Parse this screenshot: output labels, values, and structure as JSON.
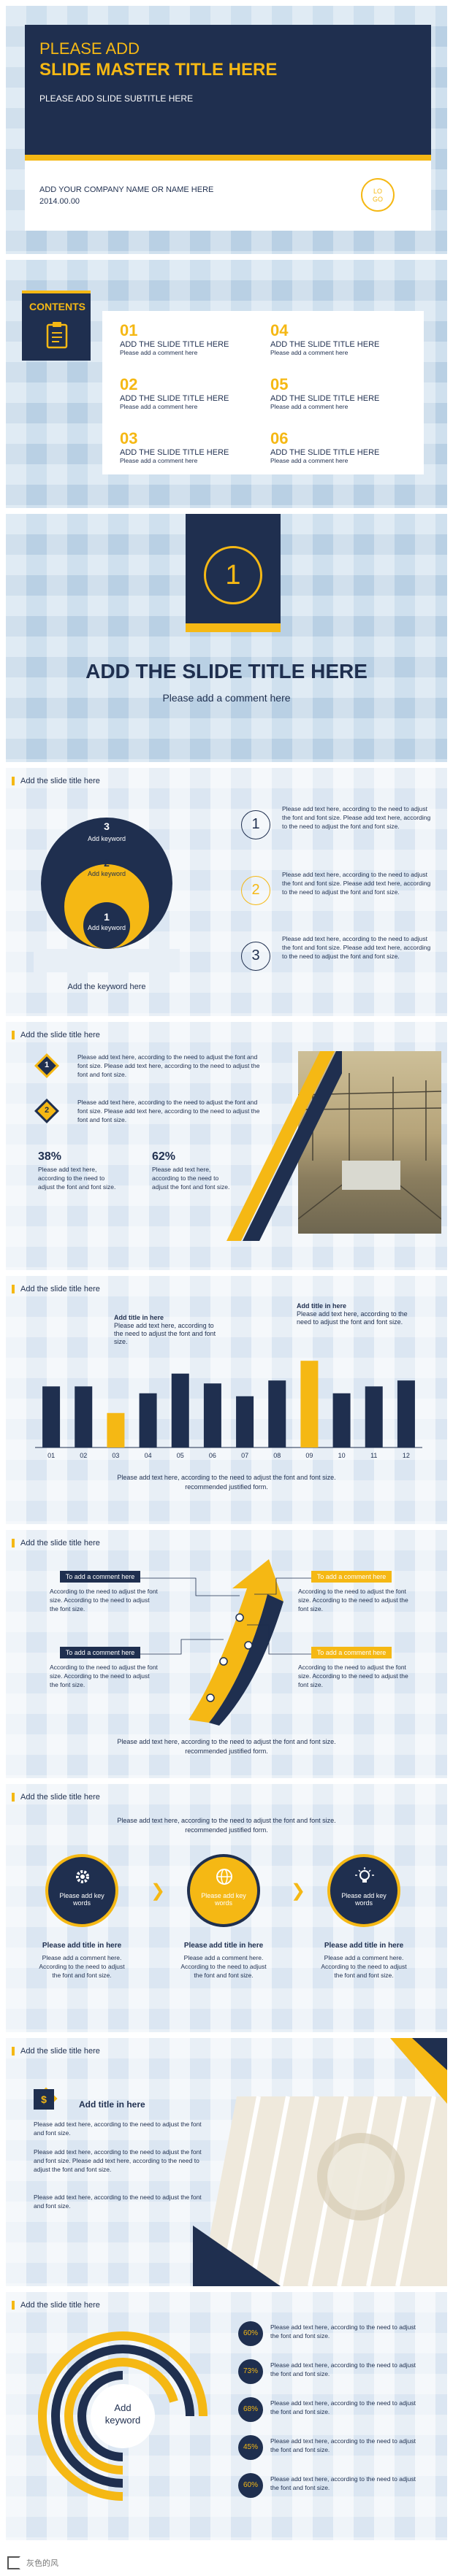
{
  "slide1": {
    "title_line1": "PLEASE ADD",
    "title_line2": "SLIDE MASTER TITLE HERE",
    "subtitle": "PLEASE ADD SLIDE SUBTITLE HERE",
    "company": "ADD YOUR COMPANY NAME OR NAME HERE",
    "date": "2014.00.00",
    "logo_line1": "LO",
    "logo_line2": "GO"
  },
  "slide2": {
    "contents_label": "CONTENTS",
    "items": [
      {
        "num": "01",
        "title": "ADD THE SLIDE TITLE HERE",
        "sub": "Please add a comment here"
      },
      {
        "num": "02",
        "title": "ADD THE SLIDE TITLE HERE",
        "sub": "Please add a comment here"
      },
      {
        "num": "03",
        "title": "ADD THE SLIDE TITLE HERE",
        "sub": "Please add a comment here"
      },
      {
        "num": "04",
        "title": "ADD THE SLIDE TITLE HERE",
        "sub": "Please add a comment here"
      },
      {
        "num": "05",
        "title": "ADD THE SLIDE TITLE HERE",
        "sub": "Please add a comment here"
      },
      {
        "num": "06",
        "title": "ADD THE SLIDE TITLE HERE",
        "sub": "Please add a comment here"
      }
    ]
  },
  "slide3": {
    "number": "1",
    "title": "ADD THE SLIDE TITLE HERE",
    "comment": "Please add a comment here"
  },
  "slide4": {
    "header": "Add the slide title here",
    "level3": "3",
    "level2": "2",
    "level1": "1",
    "keyword": "Add keyword",
    "bottom": "Add the keyword here",
    "points": [
      {
        "num": "1",
        "text": "Please add text here, according to the need to adjust the font and font size. Please add text here, according to the need to adjust the font and font size."
      },
      {
        "num": "2",
        "text": "Please add text here, according to the need to adjust the font and font size. Please add text here, according to the need to adjust the font and font size."
      },
      {
        "num": "3",
        "text": "Please add text here, according to the need to adjust the font and font size. Please add text here, according to the need to adjust the font and font size."
      }
    ]
  },
  "slide5": {
    "header": "Add the slide title here",
    "p1num": "1",
    "p1text": "Please add text here, according to the need to adjust the font and font size. Please add text here, according to the need to adjust the font and font size.",
    "p2num": "2",
    "p2text": "Please add text here, according to the need to adjust the font and font size. Please add text here, according to the need to adjust the font and font size.",
    "stat1": "38%",
    "stat1text": "Please add text here, according to the need to adjust the font and font size.",
    "stat2": "62%",
    "stat2text": "Please add text here, according to the need to adjust the font and font size."
  },
  "slide6": {
    "header": "Add the slide title here",
    "note1_title": "Add title in here",
    "note1_text": "Please add text here, according to the need to adjust the font and font size.",
    "note2_title": "Add title in here",
    "note2_text": "Please add text here, according to the need to adjust the font and font size.",
    "footer": "Please add text here, according to the need to adjust the font and font size. recommended justified form.",
    "colors": {
      "navy": "#1f2f4f",
      "yellow": "#f5b814"
    }
  },
  "chart_data": {
    "type": "bar",
    "categories": [
      "01",
      "02",
      "03",
      "04",
      "05",
      "06",
      "07",
      "08",
      "09",
      "10",
      "11",
      "12"
    ],
    "values": [
      62,
      62,
      35,
      55,
      75,
      65,
      52,
      68,
      88,
      55,
      62,
      68
    ],
    "highlight": [
      false,
      false,
      true,
      false,
      false,
      false,
      false,
      false,
      true,
      false,
      false,
      false
    ],
    "title": "",
    "xlabel": "",
    "ylabel": "",
    "ylim": [
      0,
      100
    ],
    "grid": false
  },
  "slide7": {
    "header": "Add the slide title here",
    "c1_label": "To add a comment here",
    "c1_text": "According to the need to adjust the font size. According to the need to adjust the font size.",
    "c2_label": "To add a comment here",
    "c2_text": "According to the need to adjust the font size. According to the need to adjust the font size.",
    "c3_label": "To add a comment here",
    "c3_text": "According to the need to adjust the font size. According to the need to adjust the font size.",
    "c4_label": "To add a comment here",
    "c4_text": "According to the need to adjust the font size. According to the need to adjust the font size.",
    "footer": "Please add text here, according to the need to adjust the font and font size. recommended justified form."
  },
  "slide8": {
    "header": "Add the slide title here",
    "intro": "Please add text here, according to the need to adjust the font and font size. recommended justified form.",
    "steps": [
      {
        "label": "Please add key words",
        "title": "Please add title in here",
        "text": "Please add a comment here. According to the need to adjust the font and font size."
      },
      {
        "label": "Please add key words",
        "title": "Please add title in here",
        "text": "Please add a comment here. According to the need to adjust the font and font size."
      },
      {
        "label": "Please add key words",
        "title": "Please add title in here",
        "text": "Please add a comment here. According to the need to adjust the font and font size."
      }
    ]
  },
  "slide9": {
    "header": "Add the slide title here",
    "title": "Add title in here",
    "paras": [
      "Please add text here, according to the need to adjust the font and font size.",
      "Please add text here, according to the need to adjust the font and font size. Please add text here, according to the need to adjust the font and font size.",
      "Please add text here, according to the need to adjust the font and font size."
    ]
  },
  "slide10": {
    "header": "Add the slide title here",
    "center_line1": "Add",
    "center_line2": "keyword",
    "rows": [
      {
        "pct": "60%",
        "text": "Please add text here, according to the need to adjust the font and font size."
      },
      {
        "pct": "73%",
        "text": "Please add text here, according to the need to adjust the font and font size."
      },
      {
        "pct": "68%",
        "text": "Please add text here, according to the need to adjust the font and font size."
      },
      {
        "pct": "45%",
        "text": "Please add text here, according to the need to adjust the font and font size."
      },
      {
        "pct": "60%",
        "text": "Please add text here, according to the need to adjust the font and font size."
      }
    ]
  },
  "watermark": "灰色的风"
}
